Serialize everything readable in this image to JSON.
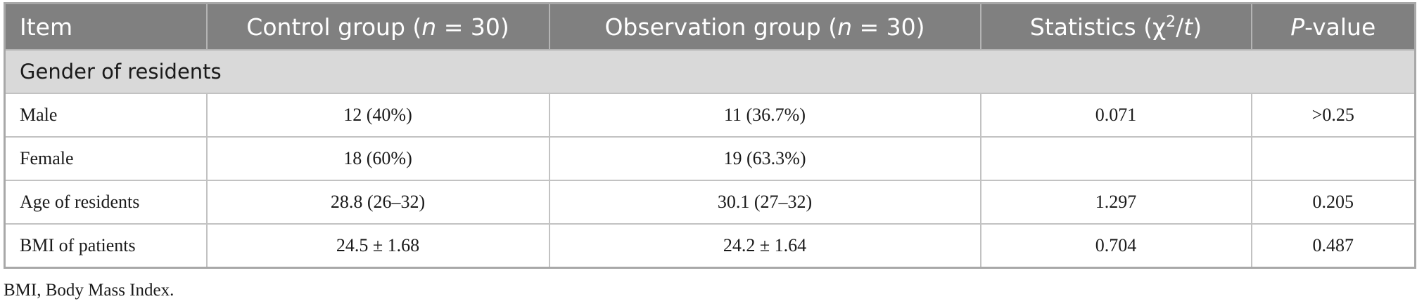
{
  "table": {
    "headers": [
      {
        "pre": "Item",
        "ital": "",
        "post": ""
      },
      {
        "pre": "Control group (",
        "ital": "n",
        "post": " = 30)"
      },
      {
        "pre": "Observation group (",
        "ital": "n",
        "post": " = 30)"
      },
      {
        "pre": "Statistics (χ",
        "sup": "2",
        "mid": "/",
        "ital": "t",
        "post": ")"
      },
      {
        "pre": "",
        "ital": "P",
        "post": "-value"
      }
    ],
    "section": "Gender of residents",
    "rows": [
      [
        "Male",
        "12 (40%)",
        "11 (36.7%)",
        "0.071",
        ">0.25"
      ],
      [
        "Female",
        "18 (60%)",
        "19 (63.3%)",
        "",
        ""
      ],
      [
        "Age of residents",
        "28.8 (26–32)",
        "30.1 (27–32)",
        "1.297",
        "0.205"
      ],
      [
        "BMI of patients",
        "24.5 ± 1.68",
        "24.2 ± 1.64",
        "0.704",
        "0.487"
      ]
    ]
  },
  "footnote": "BMI, Body Mass Index."
}
